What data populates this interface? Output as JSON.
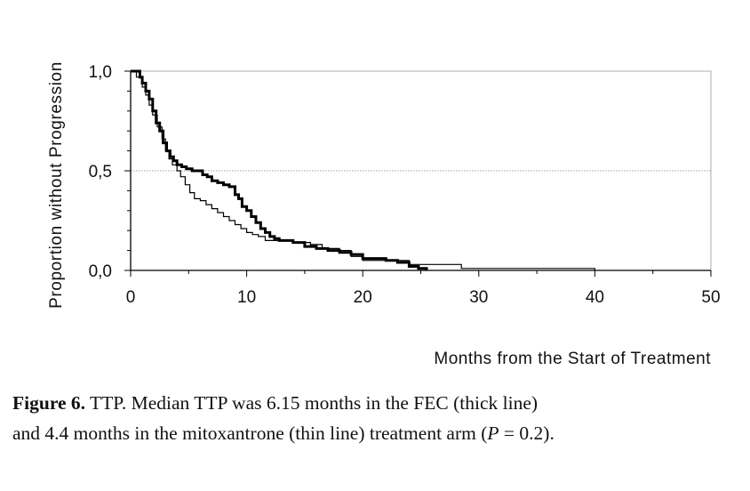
{
  "chart_data": {
    "type": "line",
    "step": true,
    "ylabel": "Proportion without Progression",
    "xlabel": "Months from the Start of Treatment",
    "xlim": [
      0,
      50
    ],
    "ylim": [
      0,
      1
    ],
    "x_ticks": [
      "0",
      "10",
      "20",
      "30",
      "40",
      "50"
    ],
    "y_ticks": [
      "0,0",
      "0,5",
      "1,0"
    ],
    "reference_line_y": 0.5,
    "series": [
      {
        "description": "thick line",
        "color": "#000000",
        "x": [
          0,
          0.8,
          1.0,
          1.3,
          1.6,
          1.9,
          2.2,
          2.5,
          2.8,
          3.1,
          3.4,
          3.7,
          4.0,
          4.4,
          4.8,
          5.3,
          5.8,
          6.2,
          6.6,
          7.0,
          7.5,
          8.0,
          8.5,
          9.0,
          9.3,
          9.6,
          10.0,
          10.4,
          10.8,
          11.2,
          11.6,
          12.0,
          12.4,
          12.8,
          14.0,
          15.0,
          16.0,
          17.0,
          18.0,
          19.0,
          20.0,
          22.0,
          23.0,
          24.0,
          24.8,
          25.5
        ],
        "y": [
          1.0,
          0.97,
          0.94,
          0.9,
          0.86,
          0.8,
          0.74,
          0.7,
          0.64,
          0.6,
          0.57,
          0.55,
          0.53,
          0.52,
          0.51,
          0.5,
          0.5,
          0.48,
          0.47,
          0.45,
          0.44,
          0.43,
          0.42,
          0.38,
          0.36,
          0.32,
          0.3,
          0.27,
          0.24,
          0.21,
          0.19,
          0.17,
          0.16,
          0.15,
          0.14,
          0.12,
          0.11,
          0.1,
          0.09,
          0.08,
          0.06,
          0.05,
          0.04,
          0.02,
          0.01,
          0.0
        ]
      },
      {
        "description": "thin line",
        "color": "#000000",
        "x": [
          0,
          0.5,
          1.0,
          1.3,
          1.6,
          1.9,
          2.3,
          2.7,
          3.0,
          3.3,
          3.6,
          4.0,
          4.3,
          4.7,
          5.1,
          5.5,
          6.0,
          6.5,
          7.0,
          7.5,
          8.0,
          8.5,
          9.0,
          9.5,
          10.0,
          10.5,
          11.0,
          11.6,
          12.3,
          14.0,
          15.5,
          16.5,
          18.0,
          19.0,
          20.0,
          24.0,
          28.5,
          40.0
        ],
        "y": [
          1.0,
          0.97,
          0.92,
          0.88,
          0.83,
          0.78,
          0.72,
          0.66,
          0.6,
          0.56,
          0.53,
          0.5,
          0.47,
          0.43,
          0.39,
          0.36,
          0.35,
          0.33,
          0.31,
          0.29,
          0.27,
          0.25,
          0.23,
          0.21,
          0.19,
          0.18,
          0.17,
          0.15,
          0.15,
          0.14,
          0.13,
          0.11,
          0.1,
          0.07,
          0.05,
          0.03,
          0.01,
          0.0
        ]
      }
    ]
  },
  "caption": {
    "label": "Figure 6.",
    "text1": " TTP. Median TTP was 6.15 months in the FEC (thick line)",
    "text2": "and 4.4 months in the mitoxantrone (thin line) treatment arm (",
    "p_symbol": "P",
    "text3": " = 0.2)."
  }
}
